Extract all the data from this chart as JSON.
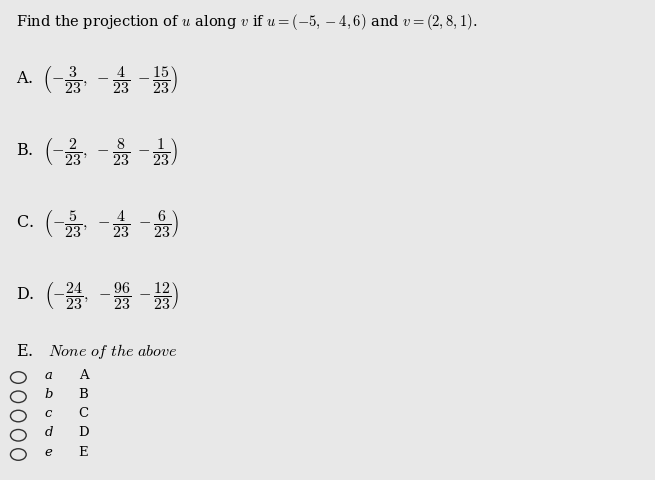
{
  "title": "Find the projection of $u$ along $v$ if $u = (-5,-4,6)$ and $v = (2,8,1)$.",
  "option_A": "A.  $\\left(-\\dfrac{3}{23},\\ -\\dfrac{4}{23}\\ -\\dfrac{15}{23}\\right)$",
  "option_B": "B.  $\\left(-\\dfrac{2}{23},\\ -\\dfrac{8}{23}\\ -\\dfrac{1}{23}\\right)$",
  "option_C": "C.  $\\left(-\\dfrac{5}{23},\\ -\\dfrac{4}{23}\\ -\\dfrac{6}{23}\\right)$",
  "option_D": "D.  $\\left(-\\dfrac{24}{23},\\ -\\dfrac{96}{23}\\ -\\dfrac{12}{23}\\right)$",
  "option_E": "E.   $\\mathit{None\\ of\\ the\\ above}$",
  "radio_keys": [
    "a",
    "b",
    "c",
    "d",
    "e"
  ],
  "radio_letters": [
    "A",
    "B",
    "C",
    "D",
    "E"
  ],
  "bg_color": "#e8e8e8",
  "title_fontsize": 10.5,
  "option_fontsize": 11.5,
  "radio_fontsize": 9.5
}
